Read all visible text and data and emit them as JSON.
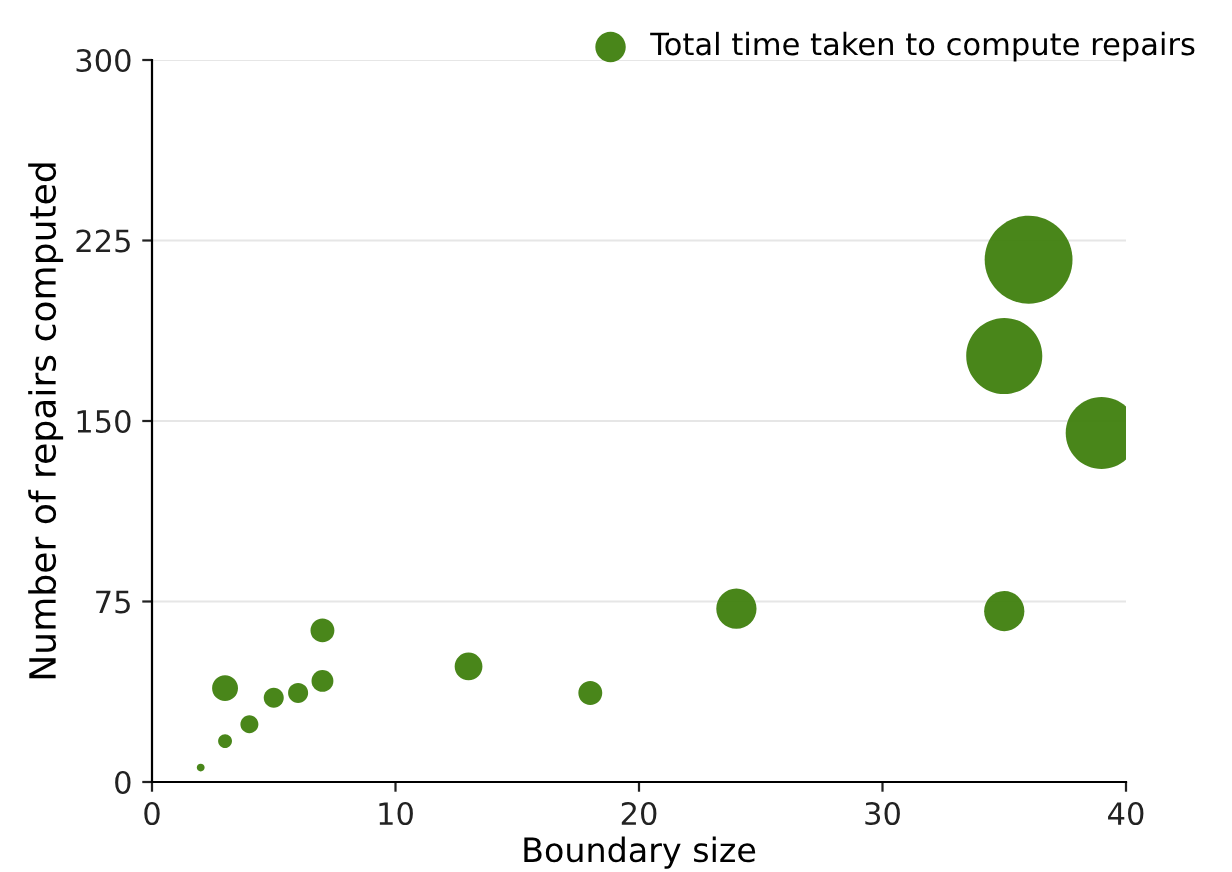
{
  "chart_data": {
    "type": "bubble",
    "xlabel": "Boundary size",
    "ylabel": "Number of repairs computed",
    "xlim": [
      0,
      40
    ],
    "xticks": [
      0,
      10,
      20,
      30,
      40
    ],
    "ylim": [
      0,
      300
    ],
    "yticks": [
      0,
      75,
      150,
      225,
      300
    ],
    "grid": "y",
    "legend": "top right",
    "series": [
      {
        "name": "Total time taken to compute repairs",
        "color": "#3f7f0e",
        "x": [
          2,
          3,
          3,
          4,
          5,
          6,
          7,
          7,
          13,
          18,
          24,
          35,
          35,
          36,
          39
        ],
        "values": [
          6,
          17,
          39,
          24,
          35,
          37,
          42,
          63,
          48,
          37,
          72,
          71,
          177,
          217,
          145
        ],
        "sizes": [
          0.008,
          0.025,
          0.087,
          0.042,
          0.052,
          0.052,
          0.062,
          0.074,
          0.1,
          0.074,
          0.21,
          0.21,
          0.75,
          1,
          0.67
        ]
      }
    ]
  }
}
